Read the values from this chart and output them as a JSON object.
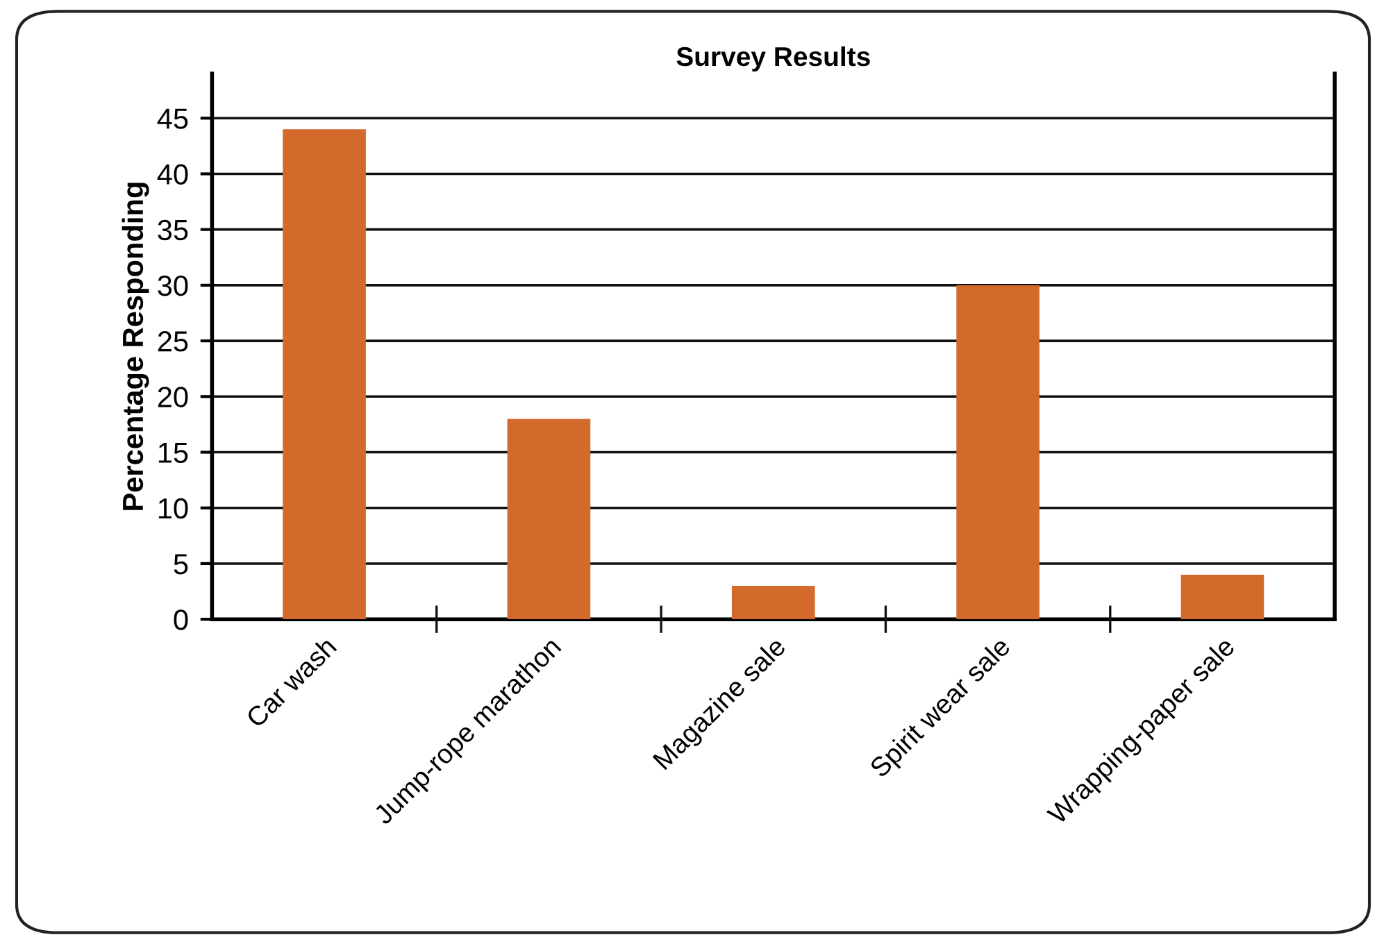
{
  "chart_data": {
    "type": "bar",
    "title": "Survey Results",
    "ylabel": "Percentage Responding",
    "categories": [
      "Car wash",
      "Jump-rope marathon",
      "Magazine sale",
      "Spirit wear sale",
      "Wrapping-paper sale"
    ],
    "values": [
      44,
      18,
      3,
      30,
      4
    ],
    "color": "#d4692c",
    "ylim": [
      0,
      49
    ],
    "yticks": [
      0,
      5,
      10,
      15,
      20,
      25,
      30,
      35,
      40,
      45
    ],
    "grid": "y",
    "legend": false
  }
}
